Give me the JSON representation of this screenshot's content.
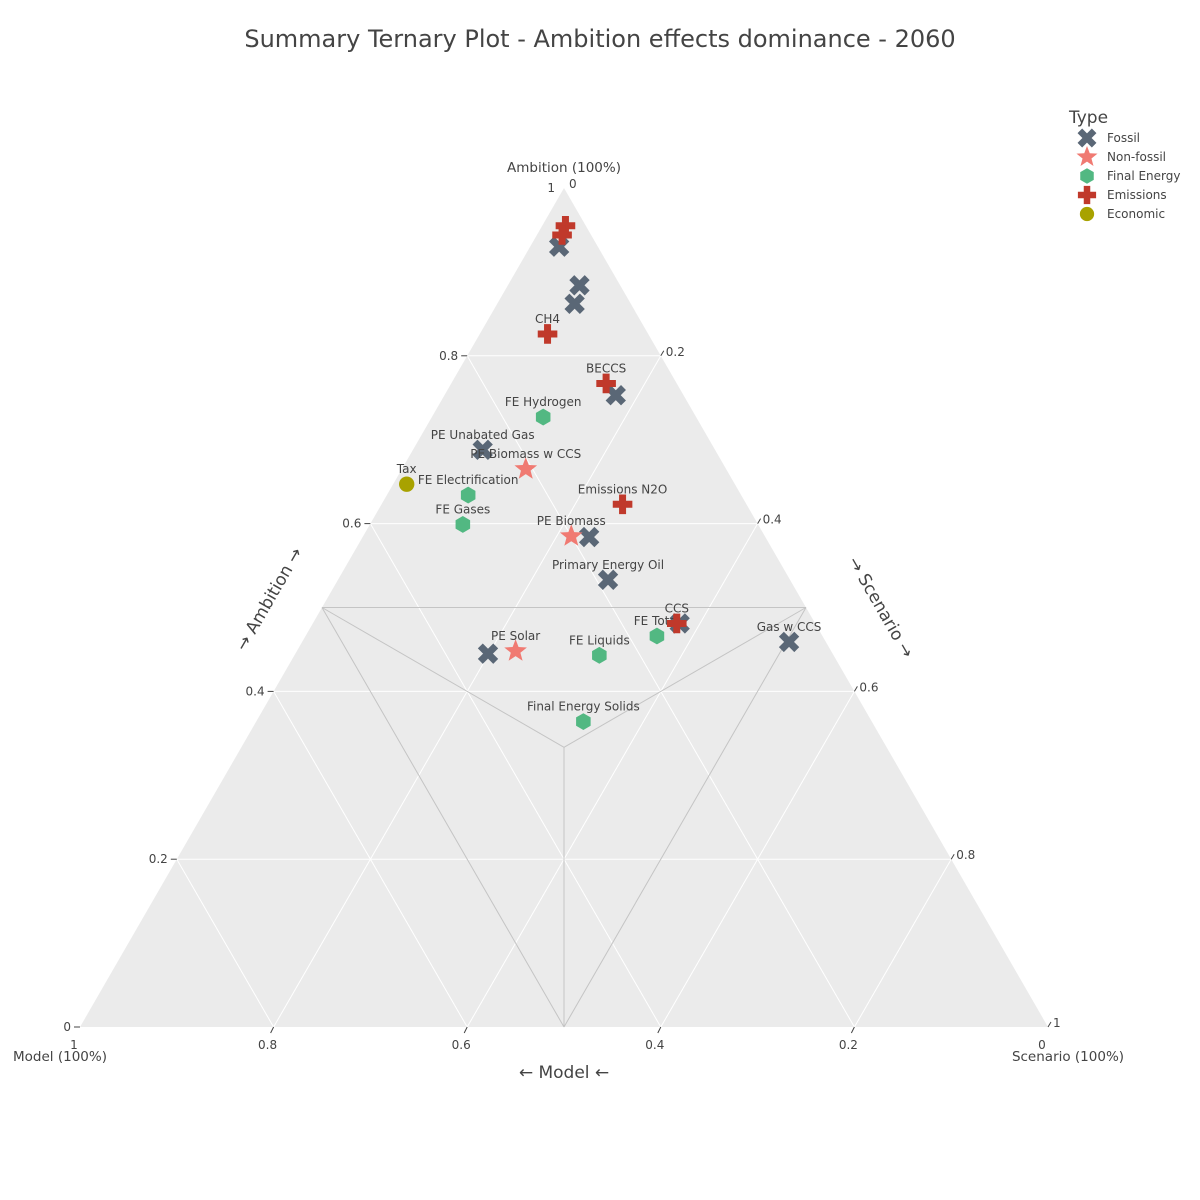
{
  "title": "Summary Ternary Plot - Ambition effects dominance - 2060",
  "chart_data": {
    "type": "scatter",
    "subtype": "ternary",
    "title": "Summary Ternary Plot - Ambition effects dominance - 2060",
    "axes": {
      "a": {
        "title": "→ Ambition →",
        "end_label": "Ambition (100%)"
      },
      "b": {
        "title": "← Model ←",
        "end_label": "Model (100%)"
      },
      "c": {
        "title": "→ Scenario →",
        "end_label": "Scenario (100%)"
      }
    },
    "ticks": {
      "a": [
        "0",
        "0.2",
        "0.4",
        "0.6",
        "0.8",
        "1"
      ],
      "b": [
        "0",
        "0.2",
        "0.4",
        "0.6",
        "0.8",
        "1"
      ],
      "c": [
        "0",
        "0.2",
        "0.4",
        "0.6",
        "0.8",
        "1"
      ]
    },
    "grid": true,
    "legend": {
      "title": "Type",
      "placement": "top-right",
      "entries": [
        {
          "name": "Fossil",
          "color": "#5a6776",
          "symbol": "x"
        },
        {
          "name": "Non-fossil",
          "color": "#f07a72",
          "symbol": "star"
        },
        {
          "name": "Final Energy",
          "color": "#52b882",
          "symbol": "hexagon"
        },
        {
          "name": "Emissions",
          "color": "#c0392b",
          "symbol": "cross"
        },
        {
          "name": "Economic",
          "color": "#a8a200",
          "symbol": "circle"
        }
      ]
    },
    "series": [
      {
        "name": "Fossil",
        "points": [
          {
            "label": "",
            "a": 0.93,
            "b": 0.04,
            "c": 0.03
          },
          {
            "label": "",
            "a": 0.884,
            "b": 0.042,
            "c": 0.074
          },
          {
            "label": "",
            "a": 0.862,
            "b": 0.058,
            "c": 0.08
          },
          {
            "label": "",
            "a": 0.753,
            "b": 0.07,
            "c": 0.177
          },
          {
            "label": "PE Unabated Gas",
            "a": 0.688,
            "b": 0.24,
            "c": 0.072
          },
          {
            "label": "",
            "a": 0.584,
            "b": 0.182,
            "c": 0.234
          },
          {
            "label": "Primary Energy Oil",
            "a": 0.533,
            "b": 0.188,
            "c": 0.279
          },
          {
            "label": "",
            "a": 0.481,
            "b": 0.14,
            "c": 0.379
          },
          {
            "label": "Gas w CCS",
            "a": 0.459,
            "b": 0.038,
            "c": 0.503
          },
          {
            "label": "",
            "a": 0.445,
            "b": 0.356,
            "c": 0.199
          }
        ]
      },
      {
        "name": "Non-fossil",
        "points": [
          {
            "label": "PE Biomass w CCS",
            "a": 0.665,
            "b": 0.207,
            "c": 0.128
          },
          {
            "label": "PE Biomass",
            "a": 0.585,
            "b": 0.2,
            "c": 0.215
          },
          {
            "label": "PE Solar",
            "a": 0.448,
            "b": 0.326,
            "c": 0.226
          }
        ]
      },
      {
        "name": "Final Energy",
        "points": [
          {
            "label": "FE Hydrogen",
            "a": 0.727,
            "b": 0.158,
            "c": 0.115
          },
          {
            "label": "FE Electrification",
            "a": 0.634,
            "b": 0.282,
            "c": 0.084
          },
          {
            "label": "FE Gases",
            "a": 0.599,
            "b": 0.305,
            "c": 0.096
          },
          {
            "label": "FE Total",
            "a": 0.466,
            "b": 0.171,
            "c": 0.363
          },
          {
            "label": "FE Liquids",
            "a": 0.443,
            "b": 0.242,
            "c": 0.315
          },
          {
            "label": "Final Energy Solids",
            "a": 0.364,
            "b": 0.298,
            "c": 0.338
          }
        ]
      },
      {
        "name": "Emissions",
        "points": [
          {
            "label": "",
            "a": 0.955,
            "b": 0.021,
            "c": 0.024
          },
          {
            "label": "",
            "a": 0.944,
            "b": 0.03,
            "c": 0.026
          },
          {
            "label": "CH4",
            "a": 0.826,
            "b": 0.104,
            "c": 0.07
          },
          {
            "label": "BECCS",
            "a": 0.767,
            "b": 0.073,
            "c": 0.16
          },
          {
            "label": "Emissions N2O",
            "a": 0.623,
            "b": 0.128,
            "c": 0.249
          },
          {
            "label": "CCS",
            "a": 0.481,
            "b": 0.143,
            "c": 0.376
          }
        ]
      },
      {
        "name": "Economic",
        "points": [
          {
            "label": "Tax",
            "a": 0.647,
            "b": 0.339,
            "c": 0.014
          }
        ]
      }
    ]
  }
}
